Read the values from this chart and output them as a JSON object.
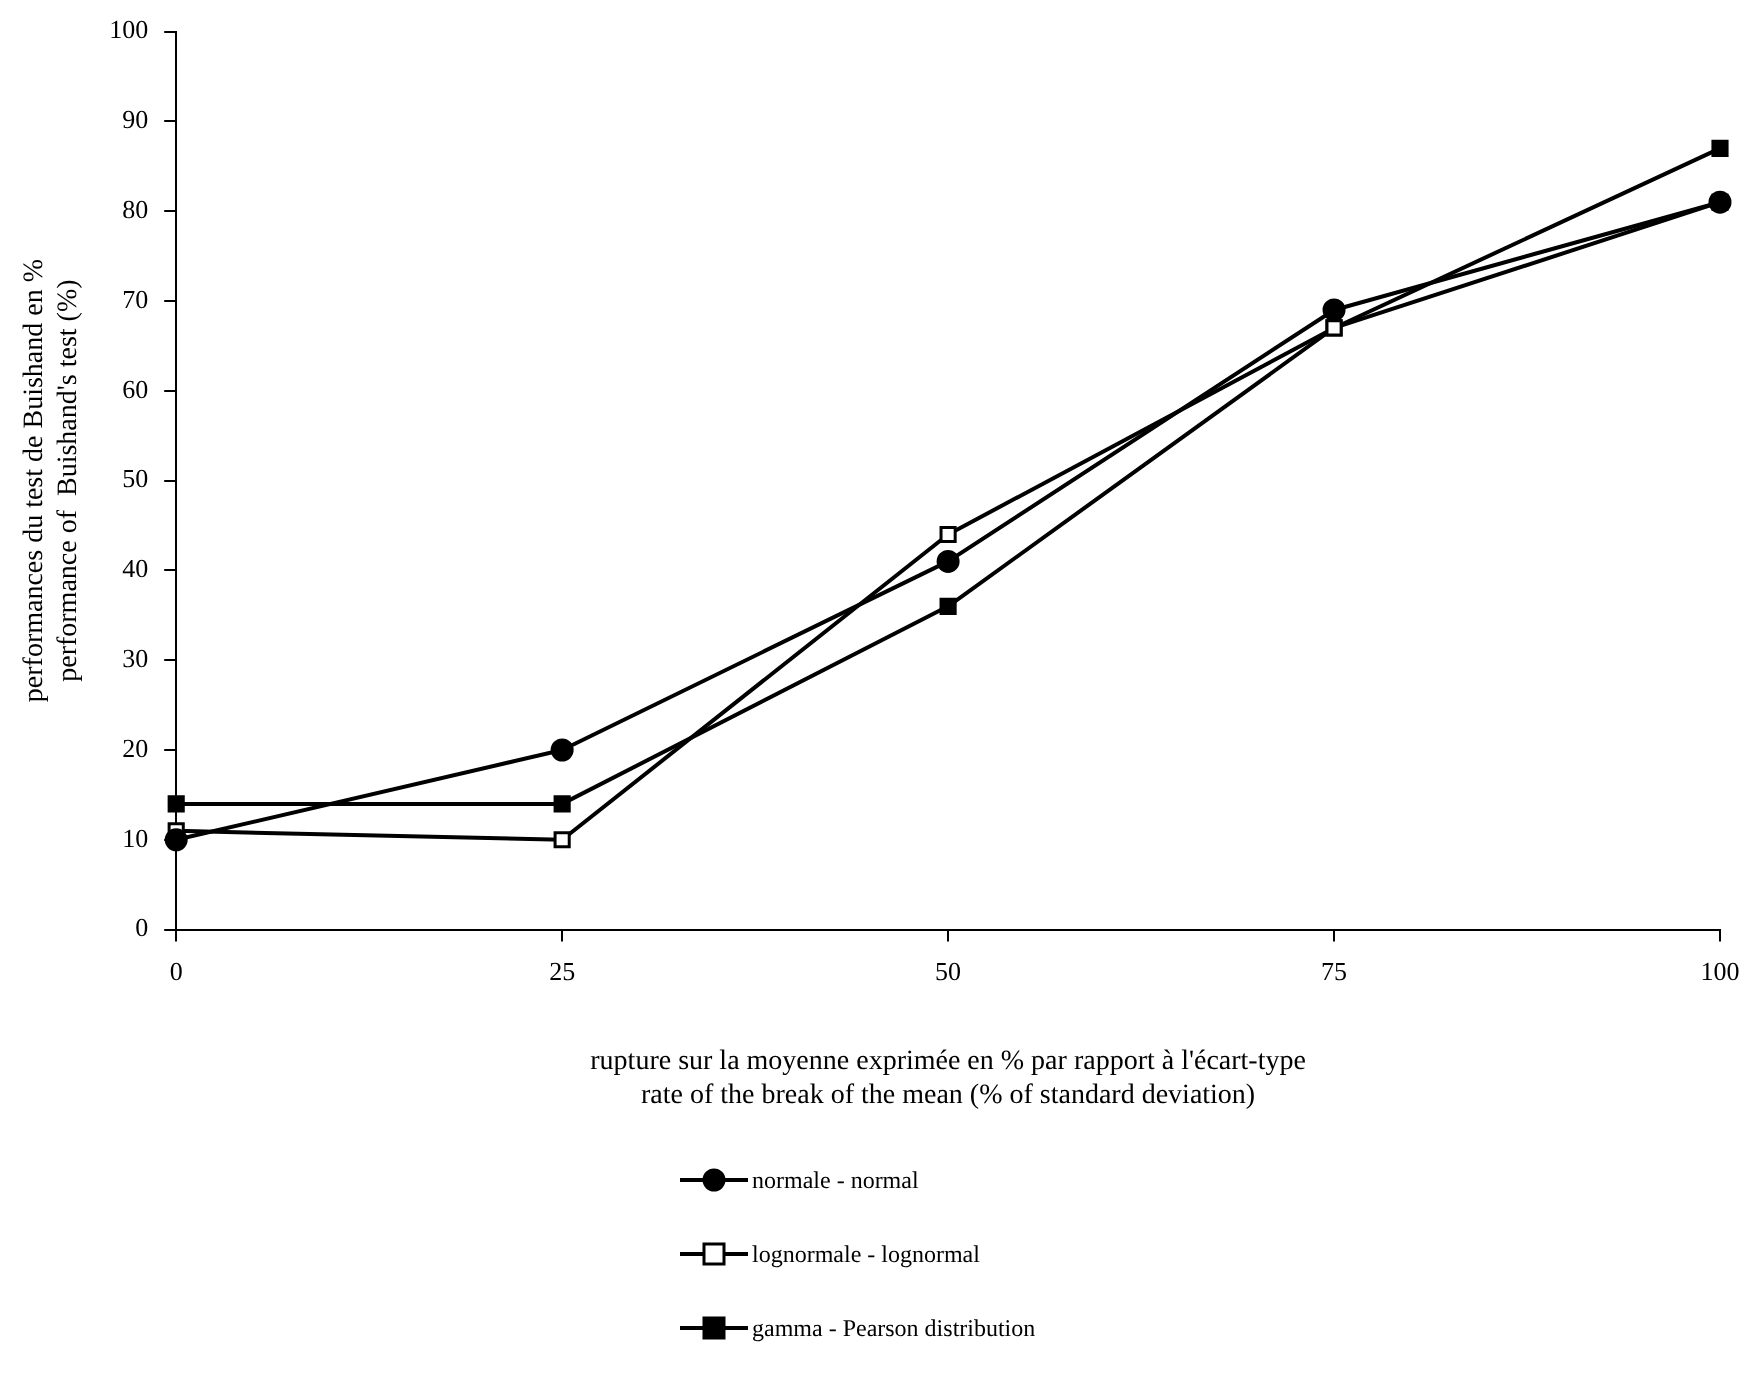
{
  "chart_data": {
    "type": "line",
    "xlabel": "rupture sur la moyenne exprimée en % par rapport à l'écart-type\nrate of the break of the mean (% of standard deviation)",
    "ylabel": "performances du test de Buishand en %\nperformance of  Buishand's test (%)",
    "x": [
      0,
      25,
      50,
      75,
      100
    ],
    "xlim": [
      0,
      100
    ],
    "xticks": [
      0,
      25,
      50,
      75,
      100
    ],
    "ylim": [
      0,
      100
    ],
    "yticks": [
      0,
      10,
      20,
      30,
      40,
      50,
      60,
      70,
      80,
      90,
      100
    ],
    "grid": false,
    "legend": "bottom",
    "line_style": "solid",
    "series": [
      {
        "name": "normale - normal",
        "color": "#000000",
        "marker": "circle",
        "values": [
          10,
          20,
          41,
          69,
          81
        ]
      },
      {
        "name": "lognormale - lognormal",
        "color": "#000000",
        "marker": "square-open",
        "values": [
          11,
          10,
          44,
          67,
          81
        ]
      },
      {
        "name": "gamma - Pearson distribution",
        "color": "#000000",
        "marker": "square",
        "values": [
          14,
          14,
          36,
          67,
          87
        ]
      }
    ]
  }
}
